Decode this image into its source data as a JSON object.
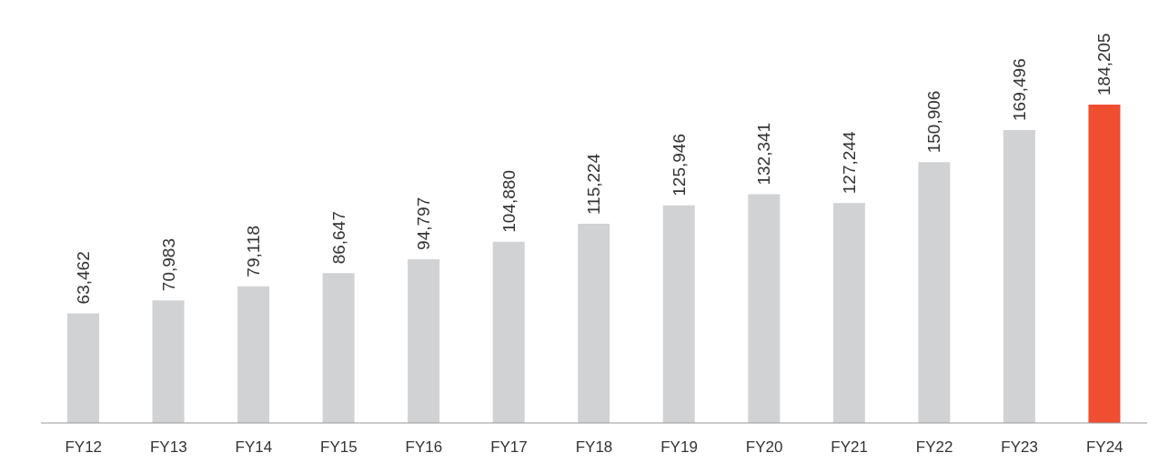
{
  "chart_data": {
    "type": "bar",
    "categories": [
      "FY12",
      "FY13",
      "FY14",
      "FY15",
      "FY16",
      "FY17",
      "FY18",
      "FY19",
      "FY20",
      "FY21",
      "FY22",
      "FY23",
      "FY24"
    ],
    "values": [
      63462,
      70983,
      79118,
      86647,
      94797,
      104880,
      115224,
      125946,
      132341,
      127244,
      150906,
      169496,
      184205
    ],
    "colors": [
      "#d1d2d4",
      "#d1d2d4",
      "#d1d2d4",
      "#d1d2d4",
      "#d1d2d4",
      "#d1d2d4",
      "#d1d2d4",
      "#d1d2d4",
      "#d1d2d4",
      "#d1d2d4",
      "#d1d2d4",
      "#d1d2d4",
      "#f04e30"
    ],
    "value_labels": [
      "63,462",
      "70,983",
      "79,118",
      "86,647",
      "94,797",
      "104,880",
      "115,224",
      "125,946",
      "132,341",
      "127,244",
      "150,906",
      "169,496",
      "184,205"
    ],
    "grid": false,
    "legend": false
  }
}
